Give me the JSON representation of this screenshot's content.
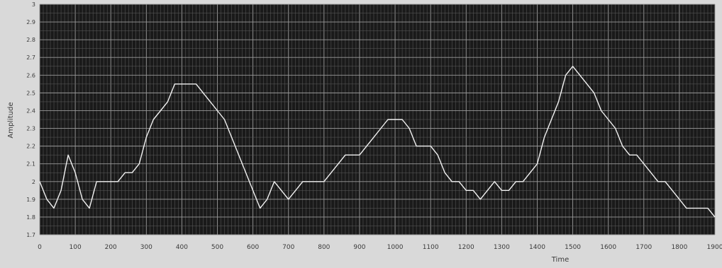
{
  "chart_data": {
    "type": "line",
    "title": "",
    "xlabel": "Time",
    "ylabel": "Amplitude",
    "xlim": [
      0,
      1900
    ],
    "ylim": [
      1.7,
      3.0
    ],
    "x_ticks": [
      "0",
      "100",
      "200",
      "300",
      "400",
      "500",
      "600",
      "700",
      "800",
      "900",
      "1000",
      "1100",
      "1200",
      "1300",
      "1400",
      "1500",
      "1600",
      "1700",
      "1800",
      "1900"
    ],
    "y_ticks": [
      "1.7",
      "1.8",
      "1.9",
      "2",
      "2.1",
      "2.2",
      "2.3",
      "2.4",
      "2.5",
      "2.6",
      "2.7",
      "2.8",
      "2.9",
      "3"
    ],
    "grid": true,
    "background": "#1a1a1a",
    "line_color": "#f2f2f2",
    "series": [
      {
        "x": [
          0,
          20,
          40,
          60,
          80,
          100,
          120,
          140,
          160,
          180,
          200,
          220,
          240,
          260,
          280,
          300,
          320,
          340,
          360,
          380,
          400,
          420,
          440,
          460,
          480,
          500,
          520,
          540,
          560,
          580,
          600,
          620,
          640,
          660,
          680,
          700,
          720,
          740,
          760,
          780,
          800,
          820,
          840,
          860,
          880,
          900,
          920,
          940,
          960,
          980,
          1000,
          1020,
          1040,
          1060,
          1080,
          1100,
          1120,
          1140,
          1160,
          1180,
          1200,
          1220,
          1240,
          1260,
          1280,
          1300,
          1320,
          1340,
          1360,
          1380,
          1400,
          1420,
          1440,
          1460,
          1480,
          1500,
          1520,
          1540,
          1560,
          1580,
          1600,
          1620,
          1640,
          1660,
          1680,
          1700,
          1720,
          1740,
          1760,
          1780,
          1800,
          1820,
          1840,
          1860,
          1880,
          1900
        ],
        "y": [
          2.0,
          1.9,
          1.85,
          1.95,
          2.15,
          2.05,
          1.9,
          1.85,
          2.0,
          2.0,
          2.0,
          2.0,
          2.05,
          2.05,
          2.1,
          2.25,
          2.35,
          2.4,
          2.45,
          2.55,
          2.55,
          2.55,
          2.55,
          2.5,
          2.45,
          2.4,
          2.35,
          2.25,
          2.15,
          2.05,
          1.95,
          1.85,
          1.9,
          2.0,
          1.95,
          1.9,
          1.95,
          2.0,
          2.0,
          2.0,
          2.0,
          2.05,
          2.1,
          2.15,
          2.15,
          2.15,
          2.2,
          2.25,
          2.3,
          2.35,
          2.35,
          2.35,
          2.3,
          2.2,
          2.2,
          2.2,
          2.15,
          2.05,
          2.0,
          2.0,
          1.95,
          1.95,
          1.9,
          1.95,
          2.0,
          1.95,
          1.95,
          2.0,
          2.0,
          2.05,
          2.1,
          2.25,
          2.35,
          2.45,
          2.6,
          2.65,
          2.6,
          2.55,
          2.5,
          2.4,
          2.35,
          2.3,
          2.2,
          2.15,
          2.15,
          2.1,
          2.05,
          2.0,
          2.0,
          1.95,
          1.9,
          1.85,
          1.85,
          1.85,
          1.85,
          1.8
        ]
      }
    ]
  }
}
